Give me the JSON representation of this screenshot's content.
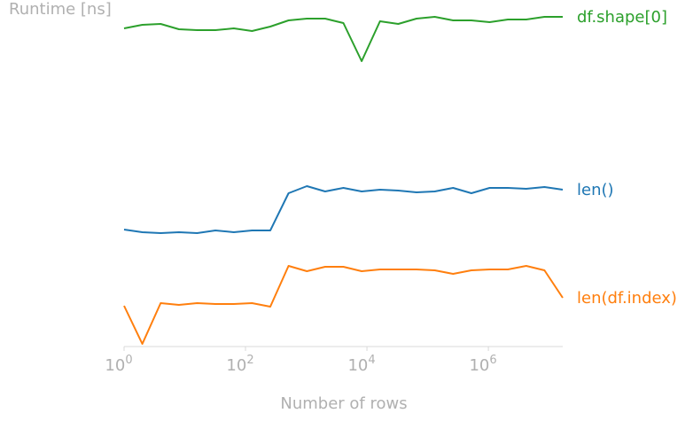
{
  "chart_data": {
    "type": "line",
    "title": "",
    "ylabel": "Runtime [ns]",
    "xlabel": "Number of rows",
    "xscale": "log",
    "xlim": [
      1,
      16777216
    ],
    "yaxis": "hidden",
    "grid": false,
    "legend": "inline labels at line ends (right)",
    "xticks": [
      {
        "base": "10",
        "exp": "0",
        "value": 1
      },
      {
        "base": "10",
        "exp": "2",
        "value": 100
      },
      {
        "base": "10",
        "exp": "4",
        "value": 10000
      },
      {
        "base": "10",
        "exp": "6",
        "value": 1000000
      }
    ],
    "x": [
      1,
      2,
      4,
      8,
      16,
      32,
      64,
      128,
      256,
      512,
      1024,
      2048,
      4096,
      8192,
      16384,
      32768,
      65536,
      131072,
      262144,
      524288,
      1048576,
      2097152,
      4194304,
      8388608,
      16777216
    ],
    "series": [
      {
        "name": "df.shape[0]",
        "color": "#2ca02c",
        "values": [
          32,
          28,
          27,
          33,
          34,
          34,
          32,
          35,
          30,
          23,
          21,
          21,
          26,
          69,
          24,
          27,
          21,
          19,
          23,
          23,
          25,
          22,
          22,
          19,
          19
        ]
      },
      {
        "name": "len()",
        "color": "#1f77b4",
        "values": [
          259,
          262,
          263,
          262,
          263,
          260,
          262,
          260,
          260,
          218,
          210,
          216,
          212,
          216,
          214,
          215,
          217,
          216,
          212,
          218,
          212,
          212,
          213,
          211,
          214
        ]
      },
      {
        "name": "len(df.index)",
        "color": "#ff7f0e",
        "values": [
          345,
          388,
          342,
          344,
          342,
          343,
          343,
          342,
          346,
          300,
          306,
          301,
          301,
          306,
          304,
          304,
          304,
          305,
          309,
          305,
          304,
          304,
          300,
          305,
          336
        ]
      }
    ]
  }
}
